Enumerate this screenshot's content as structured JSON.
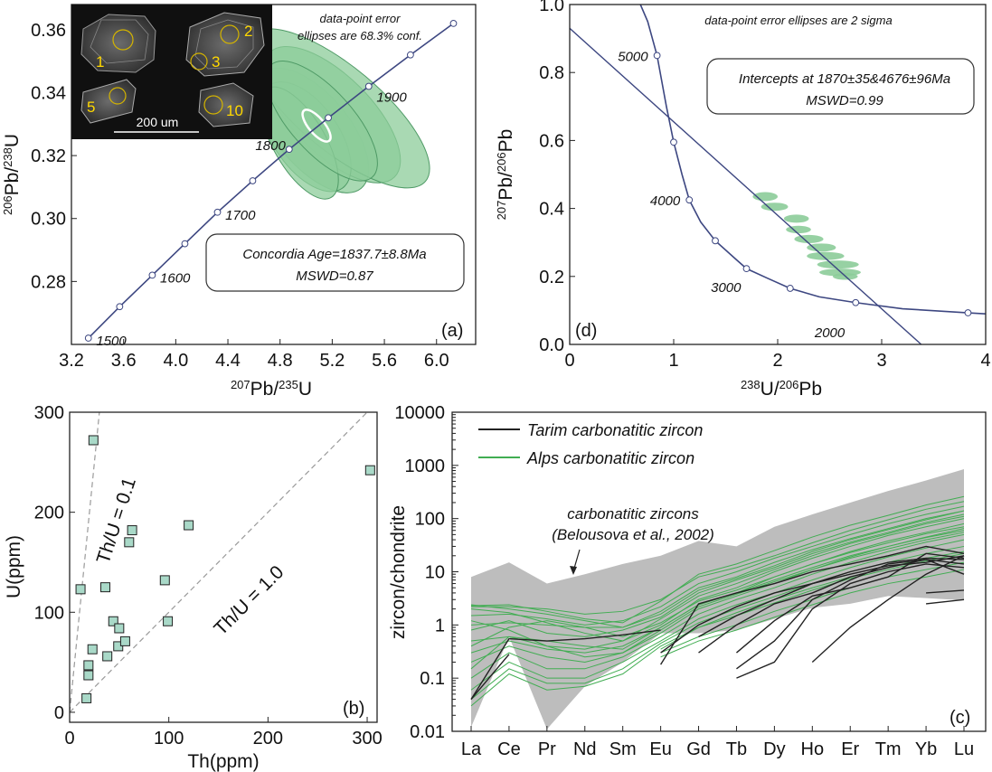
{
  "colors": {
    "concordia": "#3d4781",
    "ellipse_fill": "#8ccc99",
    "ellipse_stroke": "#4f9a66",
    "square_fill": "#a9d9c8",
    "tarim": "#222222",
    "alps": "#41ad52",
    "envelope": "#bdbdbd",
    "guide": "#9a9a9a"
  },
  "chart_data": [
    {
      "id": "a",
      "type": "scatter",
      "panel_label": "(a)",
      "xlabel": {
        "sup": "207",
        "main": "Pb/",
        "sup2": "235",
        "main2": "U"
      },
      "ylabel": {
        "sup": "206",
        "main": "Pb/",
        "sup2": "238",
        "main2": "U"
      },
      "xlim": [
        3.2,
        6.3
      ],
      "ylim": [
        0.26,
        0.368
      ],
      "xticks": [
        "3.2",
        "3.6",
        "4.0",
        "4.4",
        "4.8",
        "5.2",
        "5.6",
        "6.0"
      ],
      "yticks": [
        "0.28",
        "0.30",
        "0.32",
        "0.34",
        "0.36"
      ],
      "note": [
        "data-point error",
        "ellipses are 68.3% conf."
      ],
      "result_box": [
        "Concordia Age=1837.7±8.8Ma",
        "MSWD=0.87"
      ],
      "concordia_ticks": [
        {
          "x": 3.33,
          "y": 0.262,
          "label": "1500"
        },
        {
          "x": 3.57,
          "y": 0.272,
          "label": ""
        },
        {
          "x": 3.82,
          "y": 0.282,
          "label": "1600"
        },
        {
          "x": 4.07,
          "y": 0.292,
          "label": ""
        },
        {
          "x": 4.32,
          "y": 0.302,
          "label": "1700"
        },
        {
          "x": 4.59,
          "y": 0.312,
          "label": ""
        },
        {
          "x": 4.87,
          "y": 0.322,
          "label": "1800"
        },
        {
          "x": 5.17,
          "y": 0.332,
          "label": ""
        },
        {
          "x": 5.48,
          "y": 0.342,
          "label": "1900"
        },
        {
          "x": 5.8,
          "y": 0.352,
          "label": ""
        },
        {
          "x": 6.13,
          "y": 0.362,
          "label": ""
        }
      ],
      "ellipses": [
        {
          "cx": 5.05,
          "cy": 0.328,
          "rx": 0.28,
          "ry": 0.006,
          "rot": -40
        },
        {
          "cx": 5.2,
          "cy": 0.333,
          "rx": 0.3,
          "ry": 0.007,
          "rot": -45
        },
        {
          "cx": 5.0,
          "cy": 0.326,
          "rx": 0.25,
          "ry": 0.005,
          "rot": -35
        },
        {
          "cx": 5.25,
          "cy": 0.335,
          "rx": 0.32,
          "ry": 0.009,
          "rot": -50
        },
        {
          "cx": 4.95,
          "cy": 0.324,
          "rx": 0.2,
          "ry": 0.005,
          "rot": -30
        },
        {
          "cx": 5.12,
          "cy": 0.331,
          "rx": 0.24,
          "ry": 0.006,
          "rot": -42
        }
      ],
      "mean_ellipse": {
        "cx": 5.08,
        "cy": 0.3295,
        "rx": 0.06,
        "ry": 0.0025,
        "rot": -40
      },
      "inset": {
        "labels": [
          "1",
          "2",
          "3",
          "5",
          "10"
        ],
        "scale_label": "200 um"
      }
    },
    {
      "id": "d",
      "type": "scatter",
      "panel_label": "(d)",
      "xlabel": {
        "sup": "238",
        "main": "U/",
        "sup2": "206",
        "main2": "Pb"
      },
      "ylabel": {
        "sup": "207",
        "main": "Pb/",
        "sup2": "206",
        "main2": "Pb"
      },
      "xlim": [
        0,
        4
      ],
      "ylim": [
        0,
        1
      ],
      "xticks": [
        "0",
        "1",
        "2",
        "3",
        "4"
      ],
      "yticks": [
        "0.0",
        "0.2",
        "0.4",
        "0.6",
        "0.8",
        "1.0"
      ],
      "note": [
        "data-point error ellipses are 2 sigma"
      ],
      "result_box": [
        "Intercepts at 1870±35&4676±96Ma",
        "MSWD=0.99"
      ],
      "regression": {
        "x": [
          0,
          3.38
        ],
        "y": [
          0.93,
          0.0
        ]
      },
      "curve_points": [
        {
          "x": 0.68,
          "y": 1.0
        },
        {
          "x": 0.75,
          "y": 0.95
        },
        {
          "x": 0.84,
          "y": 0.85
        },
        {
          "x": 0.93,
          "y": 0.7
        },
        {
          "x": 1.0,
          "y": 0.595
        },
        {
          "x": 1.08,
          "y": 0.5
        },
        {
          "x": 1.15,
          "y": 0.425
        },
        {
          "x": 1.26,
          "y": 0.36
        },
        {
          "x": 1.4,
          "y": 0.305
        },
        {
          "x": 1.6,
          "y": 0.25
        },
        {
          "x": 1.7,
          "y": 0.223
        },
        {
          "x": 1.9,
          "y": 0.195
        },
        {
          "x": 2.12,
          "y": 0.165
        },
        {
          "x": 2.4,
          "y": 0.14
        },
        {
          "x": 2.75,
          "y": 0.123
        },
        {
          "x": 3.2,
          "y": 0.105
        },
        {
          "x": 3.83,
          "y": 0.093
        },
        {
          "x": 4.0,
          "y": 0.09
        }
      ],
      "curve_ticks": [
        {
          "x": 0.84,
          "y": 0.85,
          "label": "5000"
        },
        {
          "x": 1.0,
          "y": 0.595,
          "label": ""
        },
        {
          "x": 1.15,
          "y": 0.425,
          "label": "4000"
        },
        {
          "x": 1.4,
          "y": 0.305,
          "label": ""
        },
        {
          "x": 1.7,
          "y": 0.223,
          "label": "3000"
        },
        {
          "x": 2.12,
          "y": 0.165,
          "label": ""
        },
        {
          "x": 2.75,
          "y": 0.123,
          "label": "2000"
        },
        {
          "x": 3.83,
          "y": 0.093,
          "label": ""
        }
      ],
      "ellipses": [
        {
          "cx": 1.88,
          "cy": 0.435,
          "rx": 0.12,
          "ry": 0.013
        },
        {
          "cx": 1.97,
          "cy": 0.405,
          "rx": 0.13,
          "ry": 0.012
        },
        {
          "cx": 2.18,
          "cy": 0.37,
          "rx": 0.12,
          "ry": 0.012
        },
        {
          "cx": 2.2,
          "cy": 0.338,
          "rx": 0.12,
          "ry": 0.011
        },
        {
          "cx": 2.3,
          "cy": 0.31,
          "rx": 0.14,
          "ry": 0.012
        },
        {
          "cx": 2.42,
          "cy": 0.285,
          "rx": 0.14,
          "ry": 0.012
        },
        {
          "cx": 2.46,
          "cy": 0.26,
          "rx": 0.18,
          "ry": 0.012
        },
        {
          "cx": 2.58,
          "cy": 0.235,
          "rx": 0.2,
          "ry": 0.012
        },
        {
          "cx": 2.6,
          "cy": 0.212,
          "rx": 0.2,
          "ry": 0.011
        },
        {
          "cx": 2.65,
          "cy": 0.2,
          "rx": 0.12,
          "ry": 0.01
        }
      ]
    },
    {
      "id": "b",
      "type": "scatter",
      "panel_label": "(b)",
      "xlabel": "Th(ppm)",
      "ylabel": "U(ppm)",
      "xlim": [
        0,
        310
      ],
      "ylim": [
        -10,
        300
      ],
      "xticks": [
        "0",
        "100",
        "200",
        "300"
      ],
      "yticks": [
        "0",
        "100",
        "200",
        "300"
      ],
      "guide_lines": [
        {
          "label": "Th/U = 0.1",
          "ratio": 0.1
        },
        {
          "label": "Th/U = 1.0",
          "ratio": 1.0
        }
      ],
      "points": [
        {
          "x": 24,
          "y": 272
        },
        {
          "x": 11,
          "y": 123
        },
        {
          "x": 17,
          "y": 14
        },
        {
          "x": 19,
          "y": 37
        },
        {
          "x": 19,
          "y": 47
        },
        {
          "x": 23,
          "y": 63
        },
        {
          "x": 36,
          "y": 125
        },
        {
          "x": 38,
          "y": 56
        },
        {
          "x": 44,
          "y": 91
        },
        {
          "x": 49,
          "y": 66
        },
        {
          "x": 50,
          "y": 84
        },
        {
          "x": 56,
          "y": 71
        },
        {
          "x": 60,
          "y": 170
        },
        {
          "x": 63,
          "y": 182
        },
        {
          "x": 96,
          "y": 132
        },
        {
          "x": 99,
          "y": 91
        },
        {
          "x": 120,
          "y": 187
        },
        {
          "x": 303,
          "y": 242
        }
      ]
    },
    {
      "id": "c",
      "type": "line",
      "panel_label": "(c)",
      "ylabel": "zircon/chondrite",
      "yscale": "log",
      "ylim": [
        0.01,
        10000
      ],
      "yticks": [
        "0.01",
        "0.1",
        "1",
        "10",
        "100",
        "1000",
        "10000"
      ],
      "categories": [
        "La",
        "Ce",
        "Pr",
        "Nd",
        "Sm",
        "Eu",
        "Gd",
        "Tb",
        "Dy",
        "Ho",
        "Er",
        "Tm",
        "Yb",
        "Lu"
      ],
      "legend": [
        "Tarim carbonatitic zircon",
        "Alps carbonatitic zircon"
      ],
      "envelope_label": [
        "carbonatitic zircons",
        "(Belousova et al., 2002)"
      ],
      "envelope_upper": [
        8,
        15,
        6,
        9,
        14,
        20,
        38,
        30,
        70,
        120,
        200,
        330,
        520,
        850
      ],
      "envelope_lower": [
        0.012,
        0.6,
        0.011,
        0.07,
        0.2,
        0.7,
        0.7,
        0.8,
        1.3,
        2.1,
        2.5,
        3.5,
        3.2,
        2.9
      ],
      "tarim_series": [
        {
          "values": [
            0.04,
            0.55,
            0.5,
            0.55,
            0.65,
            0.8,
            null,
            null,
            null,
            null,
            null,
            null,
            null,
            null
          ]
        },
        {
          "values": [
            0.04,
            0.28,
            null,
            null,
            null,
            null,
            null,
            null,
            null,
            null,
            null,
            null,
            null,
            null
          ]
        },
        {
          "values": [
            null,
            null,
            null,
            null,
            null,
            0.18,
            2.5,
            4,
            6,
            10,
            14,
            20,
            30,
            22
          ]
        },
        {
          "values": [
            null,
            null,
            null,
            null,
            null,
            0.3,
            1.0,
            2.2,
            4,
            6,
            10,
            15,
            18,
            17
          ]
        },
        {
          "values": [
            null,
            null,
            null,
            null,
            null,
            null,
            0.6,
            1.5,
            3,
            6,
            9,
            13,
            15,
            20
          ]
        },
        {
          "values": [
            null,
            null,
            null,
            null,
            null,
            null,
            0.3,
            1.0,
            2.5,
            4,
            8,
            12,
            17,
            14
          ]
        },
        {
          "values": [
            null,
            null,
            null,
            null,
            null,
            null,
            null,
            0.1,
            0.2,
            2,
            6,
            10,
            14,
            12
          ]
        },
        {
          "values": [
            null,
            null,
            null,
            null,
            null,
            null,
            null,
            0.15,
            0.5,
            3,
            7,
            14,
            17,
            9
          ]
        },
        {
          "values": [
            null,
            null,
            null,
            null,
            null,
            null,
            null,
            0.3,
            1.2,
            3.5,
            5,
            8,
            22,
            18
          ]
        },
        {
          "values": [
            null,
            null,
            null,
            null,
            null,
            null,
            null,
            null,
            null,
            0.2,
            0.9,
            3,
            9,
            20
          ]
        },
        {
          "values": [
            null,
            null,
            null,
            null,
            null,
            null,
            null,
            null,
            null,
            null,
            null,
            null,
            2.5,
            3
          ]
        },
        {
          "values": [
            null,
            null,
            null,
            null,
            null,
            null,
            null,
            null,
            null,
            null,
            null,
            null,
            4,
            4.5
          ]
        }
      ],
      "alps_series": [
        {
          "values": [
            2.3,
            2.4,
            1.8,
            1.3,
            1.1,
            2.8,
            9,
            14,
            25,
            45,
            75,
            115,
            180,
            260
          ]
        },
        {
          "values": [
            2.2,
            2.2,
            2.0,
            1.6,
            1.8,
            3.0,
            8,
            12,
            20,
            35,
            60,
            95,
            150,
            210
          ]
        },
        {
          "values": [
            1.5,
            1.6,
            1.3,
            1.0,
            1.2,
            2.2,
            6,
            10,
            18,
            30,
            50,
            80,
            120,
            170
          ]
        },
        {
          "values": [
            1.0,
            1.1,
            1.0,
            0.9,
            0.9,
            1.8,
            5,
            8,
            15,
            26,
            42,
            65,
            100,
            140
          ]
        },
        {
          "values": [
            0.8,
            1.2,
            0.7,
            0.6,
            0.8,
            1.4,
            4,
            7,
            12,
            22,
            36,
            55,
            85,
            120
          ]
        },
        {
          "values": [
            0.5,
            0.6,
            0.4,
            0.35,
            0.5,
            1.0,
            3,
            5,
            10,
            18,
            30,
            48,
            70,
            100
          ]
        },
        {
          "values": [
            0.3,
            0.5,
            0.35,
            0.3,
            0.4,
            0.9,
            2.4,
            4,
            8,
            14,
            24,
            38,
            55,
            80
          ]
        },
        {
          "values": [
            0.2,
            0.4,
            0.25,
            0.2,
            0.3,
            0.7,
            2.0,
            3.5,
            6,
            11,
            19,
            30,
            45,
            65
          ]
        },
        {
          "values": [
            0.1,
            0.3,
            0.15,
            0.15,
            0.25,
            0.6,
            1.6,
            3,
            5,
            9,
            15,
            24,
            36,
            50
          ]
        },
        {
          "values": [
            0.06,
            0.2,
            0.1,
            0.1,
            0.2,
            0.5,
            1.3,
            2.4,
            4,
            7,
            12,
            19,
            28,
            40
          ]
        },
        {
          "values": [
            0.04,
            0.15,
            0.08,
            0.08,
            0.15,
            0.45,
            1.1,
            2,
            3.4,
            6,
            10,
            15,
            22,
            30
          ]
        },
        {
          "values": [
            0.03,
            0.12,
            0.06,
            0.07,
            0.12,
            0.4,
            0.9,
            1.7,
            3,
            5,
            8,
            12,
            18,
            24
          ]
        },
        {
          "values": [
            2.0,
            1.7,
            1.1,
            0.7,
            0.5,
            1.3,
            3.5,
            6,
            11,
            20,
            34,
            52,
            80,
            110
          ]
        },
        {
          "values": [
            0.4,
            0.9,
            1.2,
            0.9,
            0.6,
            1.1,
            2.8,
            4.5,
            8,
            14,
            23,
            35,
            52,
            70
          ]
        },
        {
          "values": [
            1.2,
            0.8,
            0.4,
            0.25,
            0.3,
            0.8,
            2.2,
            3.8,
            6.5,
            11,
            18,
            27,
            40,
            55
          ]
        },
        {
          "values": [
            0.15,
            0.6,
            0.5,
            0.4,
            0.35,
            0.9,
            2.4,
            4,
            7,
            12,
            20,
            30,
            44,
            60
          ]
        },
        {
          "values": [
            null,
            null,
            null,
            null,
            null,
            0.3,
            0.6,
            1.0,
            1.8,
            3,
            5,
            8,
            11,
            15
          ]
        },
        {
          "values": [
            null,
            null,
            null,
            null,
            null,
            0.25,
            0.5,
            0.8,
            1.4,
            2.4,
            4,
            6,
            8,
            11
          ]
        },
        {
          "values": [
            null,
            null,
            null,
            null,
            null,
            0.35,
            0.9,
            1.5,
            2.6,
            4.5,
            7.5,
            11,
            16,
            22
          ]
        },
        {
          "values": [
            2.4,
            2.0,
            1.6,
            1.2,
            0.9,
            1.6,
            4.5,
            7.5,
            13,
            24,
            40,
            62,
            95,
            140
          ]
        }
      ]
    }
  ]
}
